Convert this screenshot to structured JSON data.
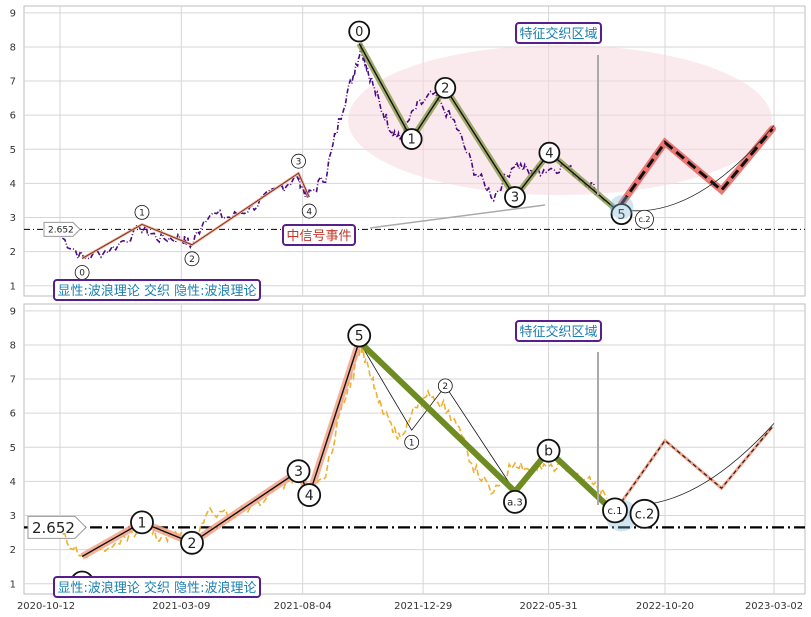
{
  "colors": {
    "price_top": "#4b0a82",
    "price_bottom": "#f0b030",
    "wave_olive": "#8a9a4a",
    "wave_salmon": "#f4a38a",
    "proj_red": "#e8605a",
    "proj_brown": "#b07050",
    "ellipse": "#f7d8df",
    "annotation_text": "#1a7fb0",
    "annotation_red": "#c0392b",
    "box_border": "#5a1e8c",
    "support_line": "#000000"
  },
  "chart_data": [
    {
      "type": "line",
      "panel": "top",
      "ylim": [
        0.7,
        9.2
      ],
      "yticks": [
        1,
        2,
        3,
        4,
        5,
        6,
        7,
        8,
        9
      ],
      "price_series": [
        [
          "2020-10-15",
          2.4
        ],
        [
          "2020-11-10",
          1.8
        ],
        [
          "2020-12-15",
          2.1
        ],
        [
          "2021-01-20",
          2.7
        ],
        [
          "2021-02-10",
          2.4
        ],
        [
          "2021-03-09",
          2.4
        ],
        [
          "2021-03-22",
          2.2
        ],
        [
          "2021-04-10",
          3.1
        ],
        [
          "2021-05-10",
          3.0
        ],
        [
          "2021-06-10",
          3.4
        ],
        [
          "2021-07-10",
          3.9
        ],
        [
          "2021-07-30",
          4.2
        ],
        [
          "2021-08-10",
          3.6
        ],
        [
          "2021-09-01",
          4.2
        ],
        [
          "2021-09-20",
          6.0
        ],
        [
          "2021-10-05",
          7.2
        ],
        [
          "2021-10-15",
          8.0
        ],
        [
          "2021-10-22",
          7.4
        ],
        [
          "2021-11-05",
          6.4
        ],
        [
          "2021-11-20",
          5.6
        ],
        [
          "2021-12-01",
          5.3
        ],
        [
          "2021-12-20",
          6.2
        ],
        [
          "2022-01-10",
          6.6
        ],
        [
          "2022-02-05",
          5.8
        ],
        [
          "2022-03-01",
          4.4
        ],
        [
          "2022-03-25",
          3.6
        ],
        [
          "2022-04-20",
          4.6
        ],
        [
          "2022-05-10",
          4.3
        ],
        [
          "2022-05-25",
          4.4
        ],
        [
          "2022-06-20",
          4.5
        ],
        [
          "2022-07-20",
          4.0
        ],
        [
          "2022-08-10",
          3.5
        ]
      ],
      "wave_points": [
        {
          "date": "2021-10-12",
          "value": 8.1,
          "label": "0"
        },
        {
          "date": "2021-12-15",
          "value": 5.3,
          "label": "1"
        },
        {
          "date": "2022-01-25",
          "value": 6.8,
          "label": "2"
        },
        {
          "date": "2022-04-20",
          "value": 3.6,
          "label": "3"
        },
        {
          "date": "2022-06-01",
          "value": 4.9,
          "label": "4"
        },
        {
          "date": "2022-08-28",
          "value": 3.1,
          "label": "5"
        }
      ],
      "early_wave_points": [
        {
          "date": "2020-11-08",
          "value": 1.8,
          "label": "0"
        },
        {
          "date": "2021-01-20",
          "value": 2.8,
          "label": "1"
        },
        {
          "date": "2021-03-22",
          "value": 2.2,
          "label": "2"
        },
        {
          "date": "2021-07-30",
          "value": 4.3,
          "label": "3"
        },
        {
          "date": "2021-08-12",
          "value": 3.6,
          "label": "4"
        }
      ],
      "projection_points": [
        {
          "date": "2022-08-28",
          "value": 3.4
        },
        {
          "date": "2022-10-20",
          "value": 5.2
        },
        {
          "date": "2022-12-28",
          "value": 3.8
        },
        {
          "date": "2023-02-28",
          "value": 5.6
        }
      ],
      "support_value": 2.652,
      "support_label": "2.652",
      "annotations": {
        "feature_zone": "特征交织区域",
        "mid_signal": "中信号事件",
        "legend_text": "显性:波浪理论 交织 隐性:波浪理论",
        "small_label_c2": "c.2"
      }
    },
    {
      "type": "line",
      "panel": "bottom",
      "ylim": [
        0.7,
        9.2
      ],
      "yticks": [
        1,
        2,
        3,
        4,
        5,
        6,
        7,
        8,
        9
      ],
      "xticks": [
        "2020-10-12",
        "2021-03-09",
        "2021-08-04",
        "2021-12-29",
        "2022-05-31",
        "2022-10-20",
        "2023-03-02"
      ],
      "price_series": [
        [
          "2020-10-15",
          2.4
        ],
        [
          "2020-11-10",
          1.8
        ],
        [
          "2020-12-15",
          2.1
        ],
        [
          "2021-01-20",
          2.7
        ],
        [
          "2021-02-10",
          2.4
        ],
        [
          "2021-03-09",
          2.4
        ],
        [
          "2021-03-22",
          2.2
        ],
        [
          "2021-04-10",
          3.1
        ],
        [
          "2021-05-10",
          3.0
        ],
        [
          "2021-06-10",
          3.4
        ],
        [
          "2021-07-10",
          3.9
        ],
        [
          "2021-07-30",
          4.2
        ],
        [
          "2021-08-10",
          3.6
        ],
        [
          "2021-09-01",
          4.2
        ],
        [
          "2021-09-20",
          6.0
        ],
        [
          "2021-10-05",
          7.2
        ],
        [
          "2021-10-15",
          8.0
        ],
        [
          "2021-10-22",
          7.4
        ],
        [
          "2021-11-05",
          6.4
        ],
        [
          "2021-11-20",
          5.6
        ],
        [
          "2021-12-01",
          5.3
        ],
        [
          "2021-12-20",
          6.2
        ],
        [
          "2022-01-10",
          6.6
        ],
        [
          "2022-02-05",
          5.8
        ],
        [
          "2022-03-01",
          4.4
        ],
        [
          "2022-03-25",
          3.6
        ],
        [
          "2022-04-20",
          4.6
        ],
        [
          "2022-05-10",
          4.3
        ],
        [
          "2022-05-25",
          4.4
        ],
        [
          "2022-06-20",
          4.5
        ],
        [
          "2022-07-20",
          4.0
        ],
        [
          "2022-08-10",
          3.5
        ]
      ],
      "wave_points": [
        {
          "date": "2020-11-08",
          "value": 1.8,
          "label": "0"
        },
        {
          "date": "2021-01-20",
          "value": 2.8,
          "label": "1"
        },
        {
          "date": "2021-03-22",
          "value": 2.2,
          "label": "2"
        },
        {
          "date": "2021-07-30",
          "value": 4.3,
          "label": "3"
        },
        {
          "date": "2021-08-12",
          "value": 3.6,
          "label": "4"
        },
        {
          "date": "2021-10-12",
          "value": 8.1,
          "label": "5"
        }
      ],
      "correction_points": [
        {
          "date": "2021-10-12",
          "value": 8.1,
          "label": "5"
        },
        {
          "date": "2022-04-20",
          "value": 3.7,
          "label": "a"
        },
        {
          "date": "2022-05-31",
          "value": 4.9,
          "label": "b"
        },
        {
          "date": "2022-08-28",
          "value": 2.9,
          "label": "c"
        }
      ],
      "minor_points": [
        {
          "date": "2021-12-15",
          "value": 5.5,
          "label": "1"
        },
        {
          "date": "2022-01-25",
          "value": 6.8,
          "label": "2"
        }
      ],
      "support_value": 2.652,
      "support_label": "2.652",
      "annotations": {
        "feature_zone": "特征交织区域",
        "legend_text": "显性:波浪理论 交织 隐性:波浪理论",
        "label_c1": "c.1",
        "label_c2": "c.2",
        "label_a3": "a.3"
      }
    }
  ]
}
